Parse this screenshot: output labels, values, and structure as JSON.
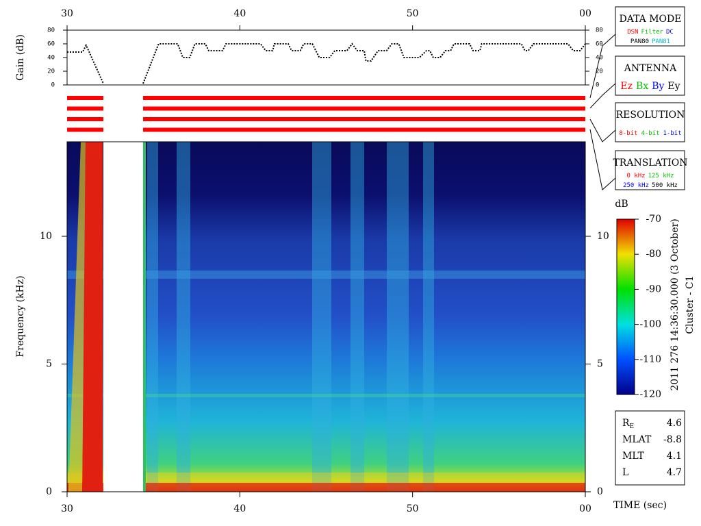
{
  "chart_data": {
    "type": "spectrogram",
    "xlim": [
      30,
      60
    ],
    "xticks": [
      30,
      40,
      50,
      {
        "value": 60,
        "label": "00"
      }
    ],
    "xlabel": "TIME (sec)",
    "gain": {
      "type": "line",
      "ylabel": "Gain (dB)",
      "ylim": [
        0,
        80
      ],
      "yticks": [
        0,
        20,
        40,
        60,
        80
      ],
      "color": "#000000",
      "x": [
        30,
        30.9,
        31.1,
        32.1,
        33,
        34.4,
        35.3,
        36.4,
        36.7,
        37.1,
        37.4,
        38.0,
        38.2,
        39.0,
        39.2,
        41.2,
        41.5,
        41.9,
        42.0,
        42.8,
        43.0,
        43.5,
        43.7,
        44.2,
        44.6,
        45.2,
        45.5,
        46.2,
        46.5,
        46.8,
        47.2,
        47.3,
        47.6,
        48.0,
        48.5,
        48.8,
        49.2,
        49.5,
        50.4,
        50.8,
        51.0,
        51.2,
        51.6,
        51.9,
        52.2,
        52.4,
        53.3,
        53.5,
        53.9,
        54.0,
        56.3,
        56.5,
        56.7,
        57.0,
        59.0,
        59.3,
        59.7,
        60
      ],
      "values": [
        48,
        48,
        58,
        2,
        null,
        2,
        60,
        60,
        40,
        40,
        60,
        60,
        50,
        50,
        60,
        60,
        50,
        50,
        60,
        60,
        50,
        50,
        60,
        60,
        40,
        40,
        50,
        50,
        60,
        50,
        50,
        35,
        35,
        50,
        50,
        60,
        60,
        40,
        40,
        50,
        50,
        40,
        40,
        50,
        50,
        60,
        60,
        50,
        50,
        60,
        60,
        50,
        50,
        60,
        60,
        50,
        50,
        60
      ]
    },
    "mode_bars": {
      "color": "#ff0000",
      "count": 4,
      "segments": [
        [
          30,
          32.1
        ],
        [
          34.4,
          60
        ]
      ]
    },
    "spectrogram": {
      "ylabel": "Frequency (kHz)",
      "ylim": [
        0,
        13.7
      ],
      "yticks": [
        0,
        5,
        10
      ]
    },
    "colorbar": {
      "unit": "dB",
      "lim": [
        -120,
        -70
      ],
      "ticks": [
        -120,
        -110,
        -100,
        -90,
        -80,
        -70
      ]
    },
    "side_label": "2011 276 14:36:30.000 (3 October)",
    "spacecraft": "Cluster - C1",
    "data_mode": {
      "title": "DATA MODE",
      "items": [
        {
          "label": "DSN",
          "color": "#ff0000"
        },
        {
          "label": "Filter",
          "color": "#00c000"
        },
        {
          "label": "DC",
          "color": "#0000ff"
        },
        {
          "label": "PAN80",
          "color": "#000000"
        },
        {
          "label": "PAN81",
          "color": "#00c0c0"
        }
      ]
    },
    "antenna": {
      "title": "ANTENNA",
      "items": [
        {
          "label": "Ez",
          "color": "#ff0000"
        },
        {
          "label": "Bx",
          "color": "#00c000"
        },
        {
          "label": "By",
          "color": "#0000ff"
        },
        {
          "label": "Ey",
          "color": "#000000"
        }
      ]
    },
    "resolution": {
      "title": "RESOLUTION",
      "items": [
        {
          "label": "8-bit",
          "color": "#ff0000"
        },
        {
          "label": "4-bit",
          "color": "#00c000"
        },
        {
          "label": "1-bit",
          "color": "#0000ff"
        }
      ]
    },
    "translation": {
      "title": "TRANSLATION",
      "items": [
        {
          "label": "0 kHz",
          "color": "#ff0000"
        },
        {
          "label": "125 kHz",
          "color": "#00c000"
        },
        {
          "label": "250 kHz",
          "color": "#0000ff"
        },
        {
          "label": "500 kHz",
          "color": "#000000"
        }
      ]
    },
    "orbit": [
      {
        "label": "R",
        "sub": "E",
        "value": 4.6
      },
      {
        "label": "MLAT",
        "value": -8.8
      },
      {
        "label": "MLT",
        "value": 4.1
      },
      {
        "label": "L",
        "value": 4.7
      }
    ]
  }
}
